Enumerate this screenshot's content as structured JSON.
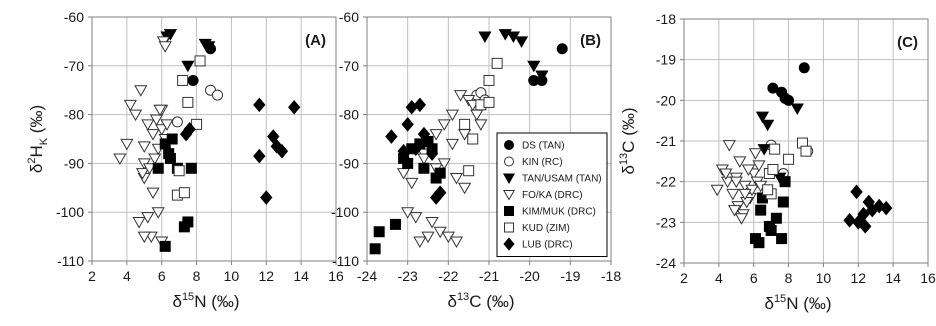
{
  "legend": [
    {
      "name": "DS (TAN)",
      "marker": "circle-filled"
    },
    {
      "name": "KIN (RC)",
      "marker": "circle-open"
    },
    {
      "name": "TAN/USAM (TAN)",
      "marker": "tri-filled"
    },
    {
      "name": "FO/KA (DRC)",
      "marker": "tri-open"
    },
    {
      "name": "KIM/MUK (DRC)",
      "marker": "square-filled"
    },
    {
      "name": "KUD (ZIM)",
      "marker": "square-open"
    },
    {
      "name": "LUB (DRC)",
      "marker": "diamond-filled"
    }
  ],
  "chart_data": [
    {
      "type": "scatter",
      "panel_label": "(A)",
      "xlabel": "δ15N (‰)",
      "ylabel": "δ2HK (‰)",
      "xlim": [
        2,
        16
      ],
      "ylim": [
        -110,
        -60
      ],
      "xticks": [
        2,
        4,
        6,
        8,
        10,
        12,
        14,
        16
      ],
      "yticks": [
        -60,
        -70,
        -80,
        -90,
        -100,
        -110
      ],
      "series": [
        {
          "name": "DS (TAN)",
          "x": [
            7.8,
            8.8
          ],
          "y": [
            -73,
            -66.5
          ]
        },
        {
          "name": "KIN (RC)",
          "x": [
            6.9,
            8.8,
            9.2
          ],
          "y": [
            -81.5,
            -75,
            -76
          ]
        },
        {
          "name": "TAN/USAM (TAN)",
          "x": [
            6.3,
            6.5,
            7.5,
            8.5,
            8.7
          ],
          "y": [
            -64,
            -63.5,
            -70,
            -65.5,
            -66
          ]
        },
        {
          "name": "FO/KA (DRC)",
          "x": [
            3.6,
            4.0,
            4.2,
            4.5,
            4.8,
            5.0,
            5.0,
            5.0,
            5.2,
            5.5,
            5.6,
            5.7,
            5.8,
            6.0,
            6.0,
            6.1,
            6.2,
            6.3,
            4.7,
            5.2,
            5.4,
            5.0,
            5.8,
            5.5,
            6.0,
            4.9,
            5.3,
            6.2,
            5.9
          ],
          "y": [
            -89,
            -86,
            -78,
            -80,
            -75,
            -86.5,
            -90,
            -93,
            -82,
            -84,
            -89,
            -81,
            -87,
            -79,
            -83,
            -65,
            -66,
            -82,
            -102,
            -101,
            -105,
            -105,
            -100,
            -96,
            -106,
            -92,
            -91,
            -85,
            -79
          ]
        },
        {
          "name": "KIM/MUK (DRC)",
          "x": [
            5.8,
            6.2,
            6.5,
            6.9,
            6.2,
            7.3,
            7.5,
            7.7,
            6.6,
            6.4
          ],
          "y": [
            -91,
            -86,
            -89,
            -91,
            -107,
            -103,
            -102,
            -91,
            -85,
            -88
          ]
        },
        {
          "name": "KUD (ZIM)",
          "x": [
            6.9,
            7.2,
            7.5,
            8.0,
            8.2,
            7.0,
            7.3
          ],
          "y": [
            -96.5,
            -73,
            -77.5,
            -82,
            -69,
            -91.5,
            -96
          ]
        },
        {
          "name": "LUB (DRC)",
          "x": [
            11.6,
            11.6,
            12.0,
            12.4,
            12.6,
            12.9,
            13.6,
            7.4,
            7.6
          ],
          "y": [
            -78,
            -88.5,
            -97,
            -84.5,
            -86.5,
            -87.5,
            -78.5,
            -84,
            -83
          ]
        }
      ]
    },
    {
      "type": "scatter",
      "panel_label": "(B)",
      "xlabel": "δ13C (‰)",
      "ylabel": "",
      "xlim": [
        -24,
        -18
      ],
      "ylim": [
        -110,
        -60
      ],
      "xticks": [
        -24,
        -23,
        -22,
        -21,
        -20,
        -19,
        -18
      ],
      "yticks": [
        -60,
        -70,
        -80,
        -90,
        -100,
        -110
      ],
      "series": [
        {
          "name": "DS (TAN)",
          "x": [
            -19.2,
            -19.7,
            -19.9
          ],
          "y": [
            -66.5,
            -73,
            -73
          ]
        },
        {
          "name": "KIN (RC)",
          "x": [
            -21.3,
            -21.2,
            -21.1
          ],
          "y": [
            -76,
            -75.5,
            -77
          ]
        },
        {
          "name": "TAN/USAM (TAN)",
          "x": [
            -21.1,
            -20.6,
            -20.4,
            -20.2,
            -19.9,
            -19.7
          ],
          "y": [
            -64,
            -63.5,
            -64,
            -65,
            -70,
            -72
          ]
        },
        {
          "name": "FO/KA (DRC)",
          "x": [
            -23.1,
            -22.9,
            -22.6,
            -22.3,
            -22.1,
            -21.9,
            -21.7,
            -21.5,
            -22.8,
            -23.0,
            -22.4,
            -22.2,
            -22.0,
            -21.8,
            -22.5,
            -22.7,
            -21.4,
            -21.3,
            -21.2,
            -21.6,
            -21.9,
            -22.6,
            -22.3,
            -22.1,
            -21.8,
            -21.6
          ],
          "y": [
            -92,
            -94,
            -88,
            -84,
            -82,
            -80,
            -76,
            -77,
            -101,
            -100,
            -102,
            -104,
            -105,
            -106,
            -105,
            -106,
            -78,
            -80,
            -82,
            -84,
            -86,
            -89,
            -91,
            -90,
            -93,
            -95
          ]
        },
        {
          "name": "KIM/MUK (DRC)",
          "x": [
            -23.8,
            -23.7,
            -23.3,
            -23.1,
            -23.0,
            -22.9,
            -22.7,
            -22.5,
            -22.4,
            -22.6,
            -22.3,
            -22.2
          ],
          "y": [
            -107.5,
            -104,
            -102.5,
            -89,
            -90,
            -87,
            -86,
            -85.5,
            -87,
            -91,
            -93,
            -92
          ]
        },
        {
          "name": "KUD (ZIM)",
          "x": [
            -21.5,
            -21.2,
            -21.0,
            -20.8,
            -21.0,
            -21.6,
            -21.4
          ],
          "y": [
            -91.5,
            -78,
            -77.5,
            -69.5,
            -73,
            -82,
            -85
          ]
        },
        {
          "name": "LUB (DRC)",
          "x": [
            -23.4,
            -23.1,
            -22.9,
            -22.7,
            -22.6,
            -22.4,
            -22.3,
            -22.2,
            -23.0,
            -22.8
          ],
          "y": [
            -84.5,
            -87.5,
            -78.5,
            -78,
            -84,
            -88,
            -97,
            -96,
            -82,
            -87
          ]
        }
      ]
    },
    {
      "type": "scatter",
      "panel_label": "(C)",
      "xlabel": "δ15N (‰)",
      "ylabel": "δ13C (‰)",
      "xlim": [
        2,
        16
      ],
      "ylim": [
        -24,
        -18
      ],
      "xticks": [
        2,
        4,
        6,
        8,
        10,
        12,
        14,
        16
      ],
      "yticks": [
        -18,
        -19,
        -20,
        -21,
        -22,
        -23,
        -24
      ],
      "series": [
        {
          "name": "DS (TAN)",
          "x": [
            7.1,
            7.6,
            7.8,
            8.0,
            8.9
          ],
          "y": [
            -19.7,
            -19.8,
            -19.95,
            -20.0,
            -19.2
          ]
        },
        {
          "name": "KIN (RC)",
          "x": [
            7.0,
            7.7,
            9.1
          ],
          "y": [
            -21.1,
            -21.8,
            -21.25
          ]
        },
        {
          "name": "TAN/USAM (TAN)",
          "x": [
            6.5,
            6.8,
            8.5,
            6.6,
            7.5
          ],
          "y": [
            -20.4,
            -20.6,
            -20.2,
            -21.2,
            -21.9
          ]
        },
        {
          "name": "FO/KA (DRC)",
          "x": [
            3.9,
            4.2,
            4.5,
            4.8,
            5.0,
            5.2,
            5.5,
            5.8,
            6.0,
            6.2,
            4.6,
            5.1,
            5.4,
            5.6,
            5.9,
            6.3,
            4.9,
            5.3,
            5.7,
            6.1,
            4.4,
            5.0,
            5.5,
            6.4
          ],
          "y": [
            -22.2,
            -21.7,
            -22.0,
            -22.3,
            -21.9,
            -21.5,
            -22.1,
            -22.4,
            -21.8,
            -22.0,
            -21.1,
            -22.6,
            -22.8,
            -22.5,
            -22.2,
            -21.6,
            -22.7,
            -22.9,
            -21.7,
            -21.3,
            -21.8,
            -22.0,
            -22.3,
            -22.1
          ]
        },
        {
          "name": "KIM/MUK (DRC)",
          "x": [
            6.1,
            6.3,
            6.4,
            6.5,
            6.9,
            7.0,
            7.3,
            7.6,
            7.7,
            7.8
          ],
          "y": [
            -23.4,
            -23.5,
            -22.7,
            -22.4,
            -23.1,
            -23.2,
            -22.9,
            -23.4,
            -22.5,
            -22.0
          ]
        },
        {
          "name": "KUD (ZIM)",
          "x": [
            6.9,
            7.2,
            7.0,
            8.0,
            8.8,
            9.0,
            6.8,
            7.1
          ],
          "y": [
            -21.8,
            -21.2,
            -22.3,
            -21.45,
            -21.05,
            -21.25,
            -22.2,
            -21.7
          ]
        },
        {
          "name": "LUB (DRC)",
          "x": [
            11.5,
            11.9,
            12.0,
            12.3,
            12.4,
            12.6,
            12.8,
            13.2,
            13.6
          ],
          "y": [
            -22.95,
            -22.25,
            -23.0,
            -22.8,
            -23.1,
            -22.5,
            -22.7,
            -22.6,
            -22.65
          ]
        }
      ]
    }
  ]
}
